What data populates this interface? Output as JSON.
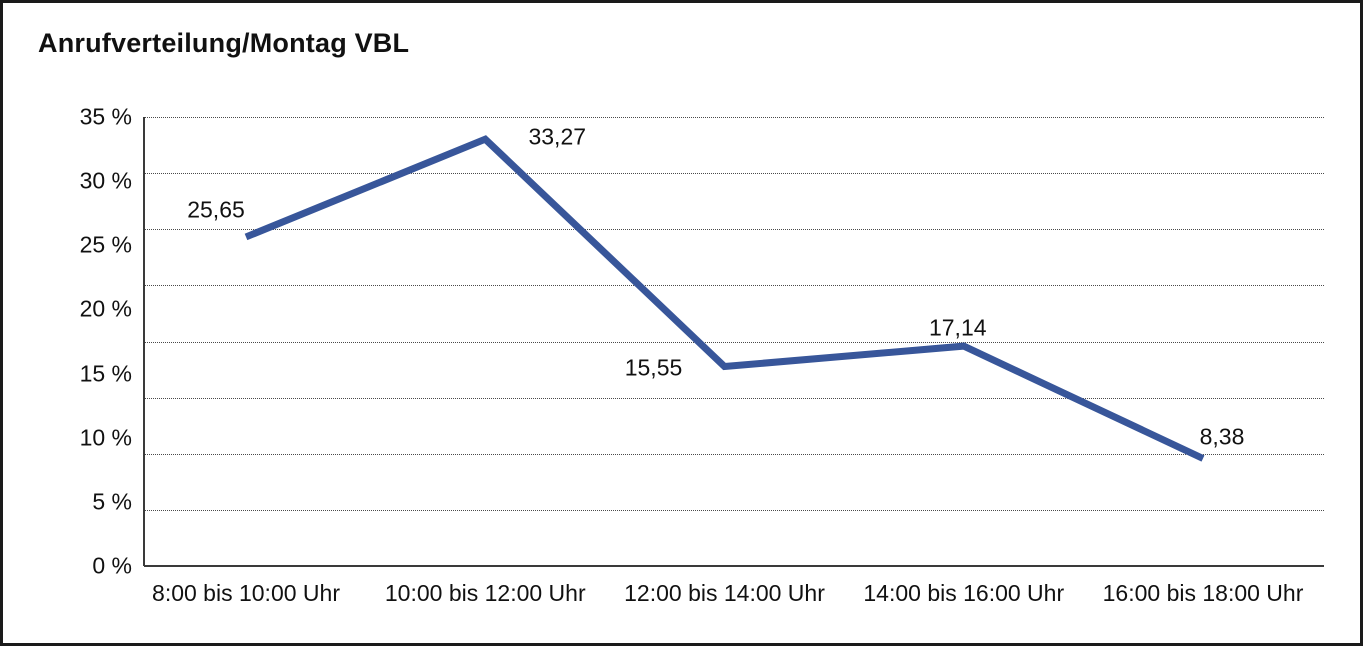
{
  "chart_data": {
    "type": "line",
    "title": "Anrufverteilung/Montag VBL",
    "categories": [
      "8:00 bis 10:00 Uhr",
      "10:00 bis 12:00 Uhr",
      "12:00 bis 14:00 Uhr",
      "14:00 bis 16:00 Uhr",
      "16:00 bis 18:00 Uhr"
    ],
    "values": [
      25.65,
      33.27,
      15.55,
      17.14,
      8.38
    ],
    "point_labels": [
      "25,65",
      "33,27",
      "15,55",
      "17,14",
      "8,38"
    ],
    "y_tick_labels": [
      "35 %",
      "30 %",
      "25 %",
      "20 %",
      "15 %",
      "10 %",
      "5 %",
      "0 %"
    ],
    "y_tick_values": [
      35,
      30,
      25,
      20,
      15,
      10,
      5,
      0
    ],
    "ylim": [
      0,
      35
    ],
    "xlabel": "",
    "ylabel": "",
    "legend": "none",
    "grid": "horizontal-dotted",
    "line_color": "#38569A",
    "grid_color": "#4A4A4A",
    "axis_color": "#3A3A3A",
    "text_color": "#111111",
    "background": "#FFFFFF",
    "frame_border_color": "#1A1A1A"
  }
}
